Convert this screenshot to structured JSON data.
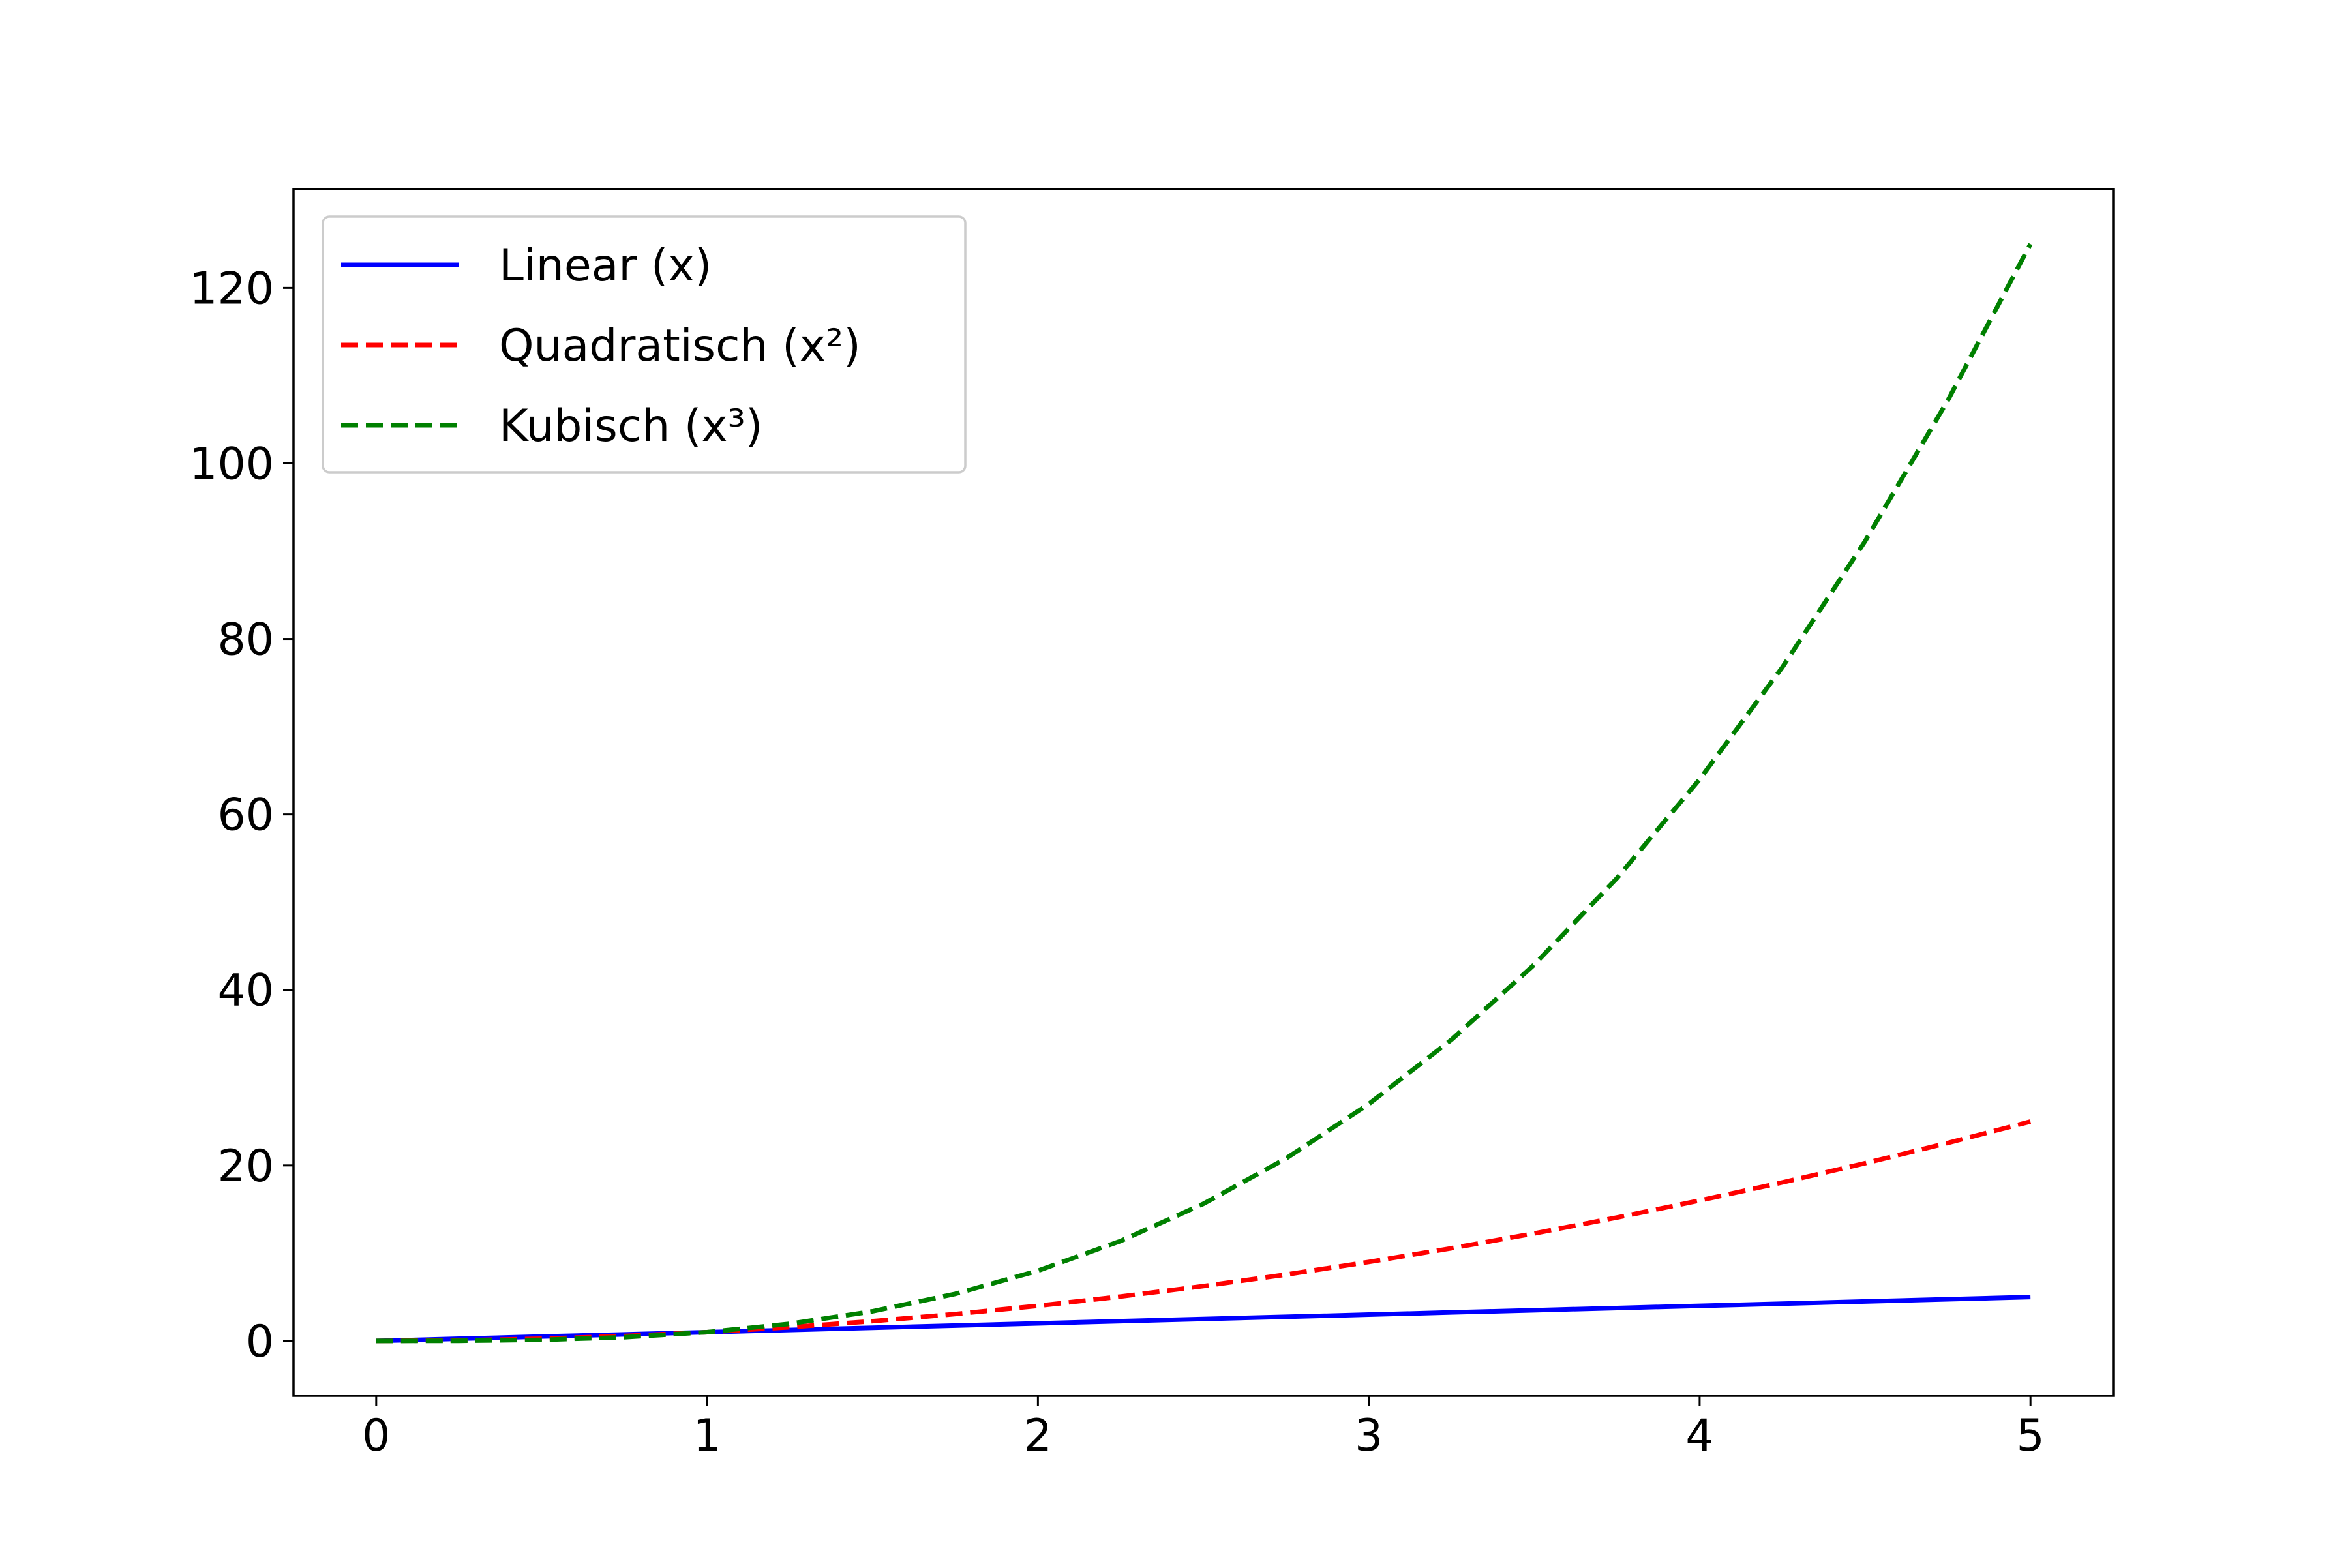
{
  "chart_data": {
    "type": "line",
    "title": "",
    "xlabel": "",
    "ylabel": "",
    "xlim": [
      -0.25,
      5.25
    ],
    "ylim": [
      -6.25,
      131.25
    ],
    "x_ticks": [
      0,
      1,
      2,
      3,
      4,
      5
    ],
    "y_ticks": [
      0,
      20,
      40,
      60,
      80,
      100,
      120
    ],
    "grid": false,
    "legend_position": "upper left",
    "x": [
      0,
      0.25,
      0.5,
      0.75,
      1,
      1.25,
      1.5,
      1.75,
      2,
      2.25,
      2.5,
      2.75,
      3,
      3.25,
      3.5,
      3.75,
      4,
      4.25,
      4.5,
      4.75,
      5
    ],
    "series": [
      {
        "name": "Linear (x)",
        "color": "#0000ff",
        "style": "solid",
        "values": [
          0,
          0.25,
          0.5,
          0.75,
          1,
          1.25,
          1.5,
          1.75,
          2,
          2.25,
          2.5,
          2.75,
          3,
          3.25,
          3.5,
          3.75,
          4,
          4.25,
          4.5,
          4.75,
          5
        ]
      },
      {
        "name": "Quadratisch (x²)",
        "color": "#ff0000",
        "style": "dashed",
        "values": [
          0,
          0.0625,
          0.25,
          0.5625,
          1,
          1.5625,
          2.25,
          3.0625,
          4,
          5.0625,
          6.25,
          7.5625,
          9,
          10.5625,
          12.25,
          14.0625,
          16,
          18.0625,
          20.25,
          22.5625,
          25
        ]
      },
      {
        "name": "Kubisch (x³)",
        "color": "#008000",
        "style": "dashed",
        "values": [
          0,
          0.0156,
          0.125,
          0.4219,
          1,
          1.9531,
          3.375,
          5.3594,
          8,
          11.3906,
          15.625,
          20.7969,
          27,
          34.3281,
          42.875,
          52.7344,
          64,
          76.7656,
          91.125,
          107.1719,
          125
        ]
      }
    ]
  }
}
